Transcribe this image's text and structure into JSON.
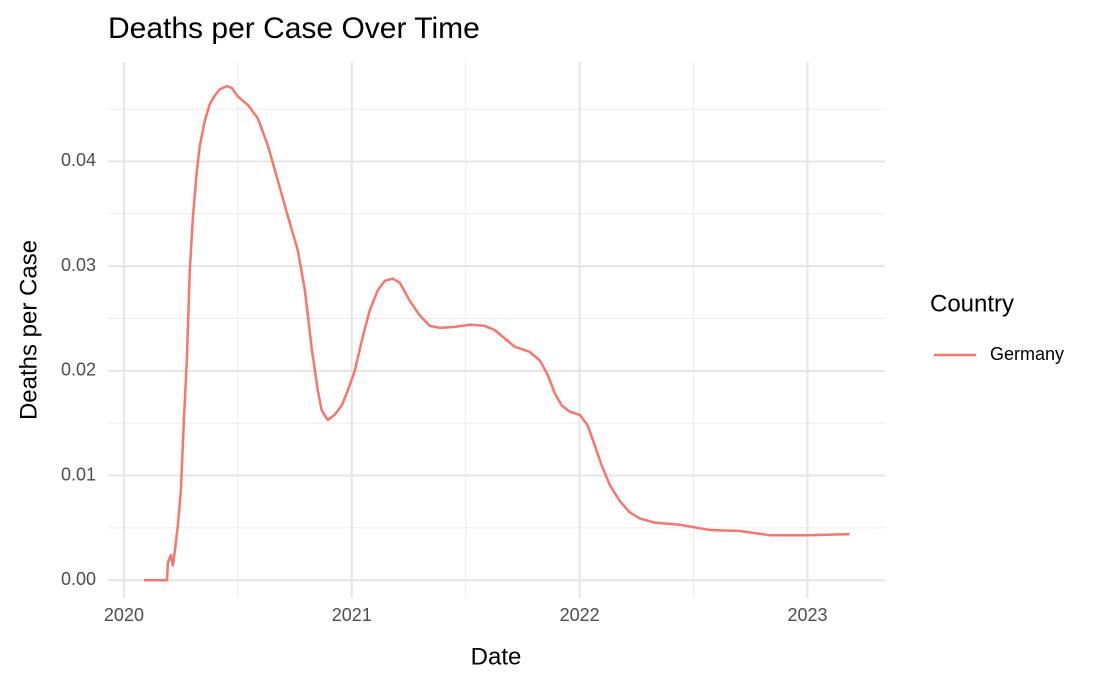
{
  "chart_data": {
    "type": "line",
    "title": "Deaths per Case Over Time",
    "x_label": "Date",
    "y_label": "Deaths per Case",
    "legend_title": "Country",
    "legend_position": "right",
    "grid": true,
    "x": [
      2020.088,
      2020.189,
      2020.193,
      2020.206,
      2020.215,
      2020.224,
      2020.237,
      2020.25,
      2020.263,
      2020.276,
      2020.289,
      2020.303,
      2020.32,
      2020.333,
      2020.355,
      2020.377,
      2020.399,
      2020.421,
      2020.452,
      2020.474,
      2020.5,
      2020.544,
      2020.588,
      2020.632,
      2020.675,
      2020.719,
      2020.763,
      2020.794,
      2020.825,
      2020.851,
      2020.868,
      2020.895,
      2020.925,
      2020.956,
      2020.982,
      2021.013,
      2021.044,
      2021.079,
      2021.114,
      2021.145,
      2021.18,
      2021.211,
      2021.254,
      2021.298,
      2021.342,
      2021.386,
      2021.452,
      2021.518,
      2021.583,
      2021.627,
      2021.671,
      2021.715,
      2021.781,
      2021.825,
      2021.86,
      2021.89,
      2021.921,
      2021.956,
      2022.0,
      2022.035,
      2022.066,
      2022.096,
      2022.132,
      2022.175,
      2022.219,
      2022.263,
      2022.329,
      2022.439,
      2022.57,
      2022.702,
      2022.833,
      2023.0,
      2023.184
    ],
    "series": [
      {
        "name": "Germany",
        "color": "#f8766d",
        "values": [
          0,
          0,
          0.0017,
          0.0024,
          0.0014,
          0.0029,
          0.0053,
          0.0086,
          0.0153,
          0.021,
          0.0296,
          0.0348,
          0.0391,
          0.0415,
          0.0439,
          0.0455,
          0.0463,
          0.0469,
          0.0472,
          0.047,
          0.0462,
          0.0454,
          0.0441,
          0.0415,
          0.0382,
          0.0348,
          0.0315,
          0.0277,
          0.022,
          0.0181,
          0.0162,
          0.0153,
          0.0158,
          0.0167,
          0.0181,
          0.02,
          0.0229,
          0.0258,
          0.0277,
          0.0286,
          0.0288,
          0.0284,
          0.0267,
          0.0253,
          0.0243,
          0.0241,
          0.0242,
          0.0244,
          0.0243,
          0.0239,
          0.0231,
          0.0223,
          0.0218,
          0.021,
          0.0196,
          0.0179,
          0.0167,
          0.0161,
          0.0158,
          0.0148,
          0.0129,
          0.011,
          0.0091,
          0.0076,
          0.0065,
          0.0059,
          0.0055,
          0.0053,
          0.0048,
          0.0047,
          0.0043,
          0.0043,
          0.0044
        ]
      }
    ],
    "xlim": [
      2019.93,
      2023.34
    ],
    "xticks": [
      2020,
      2021,
      2022,
      2023
    ],
    "xminor": [
      2020.5,
      2021.5,
      2022.5
    ],
    "ylim": [
      -0.0017,
      0.0495
    ],
    "yticks": [
      {
        "value": 0,
        "label": "0.00"
      },
      0.01,
      0.02,
      0.03,
      0.04
    ],
    "yminor": [
      0.005,
      0.015,
      0.025,
      0.035,
      0.045
    ]
  }
}
